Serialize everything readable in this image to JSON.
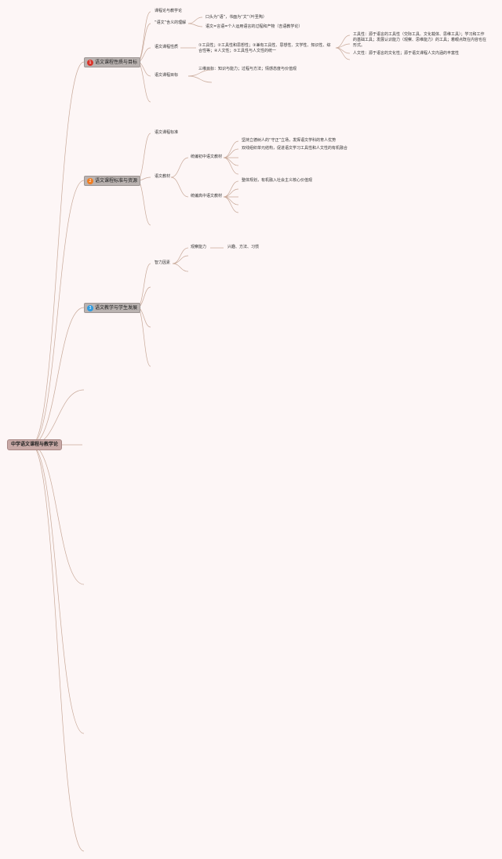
{
  "colors": {
    "background": "#fdf6f6",
    "line": "#c8a999",
    "badge1": "#d9352b",
    "badge2": "#ef7d22",
    "badge3": "#2f9be0"
  },
  "root": "中学语文课程与教学论",
  "branches": [
    {
      "badge": "1",
      "label": "语文课程性质与目标",
      "children": [
        {
          "label": "课程论与教学论"
        },
        {
          "label": "“语文”含义的理解",
          "children": [
            "口头为“语”，书面为“文”（叶圣陶）",
            "语文=言语=个人运用语言的过程和产物（吉语教学论）"
          ]
        },
        {
          "label": "语文课程性质",
          "detail": "①工具性；②工具性和思想性；③兼有工具性、思想性、文学性、知识性、综合性等；④人文性；⑤工具性与人文性的统一",
          "children": [
            "工具性：源于语言的工具性（交际工具、文化载体、思维工具）；学习和工作的基础工具；发展认识能力（观察、思维能力）的工具；着眼点既在内容也在形式。",
            "人文性：源于语言的文化性；源于语文课程人文内涵的丰富性"
          ]
        },
        {
          "label": "语文课程目标",
          "children": [
            "三维目标：知识与能力；过程与方法；情感态度与价值观"
          ]
        }
      ]
    },
    {
      "badge": "2",
      "label": "语文课程标准与资源",
      "children": [
        {
          "label": "语文课程标准"
        },
        {
          "label": "语文教材",
          "children": [
            {
              "label": "统编初中语文教材",
              "children": [
                "坚持立德树人的“守正”立场，发挥语文学科的育人优势",
                "双线组织单元结构，促进语文学习工具性和人文性的有机融合"
              ]
            },
            {
              "label": "统编高中语文教材",
              "children": [
                "整体规划，有机融入社会主义核心价值观"
              ]
            }
          ]
        }
      ]
    },
    {
      "badge": "3",
      "label": "语文教学与学生发展",
      "children": [
        {
          "label": "智力因素",
          "children": [
            {
              "label": "观察能力",
              "detail": "兴趣、方法、习惯"
            }
          ]
        }
      ]
    }
  ]
}
